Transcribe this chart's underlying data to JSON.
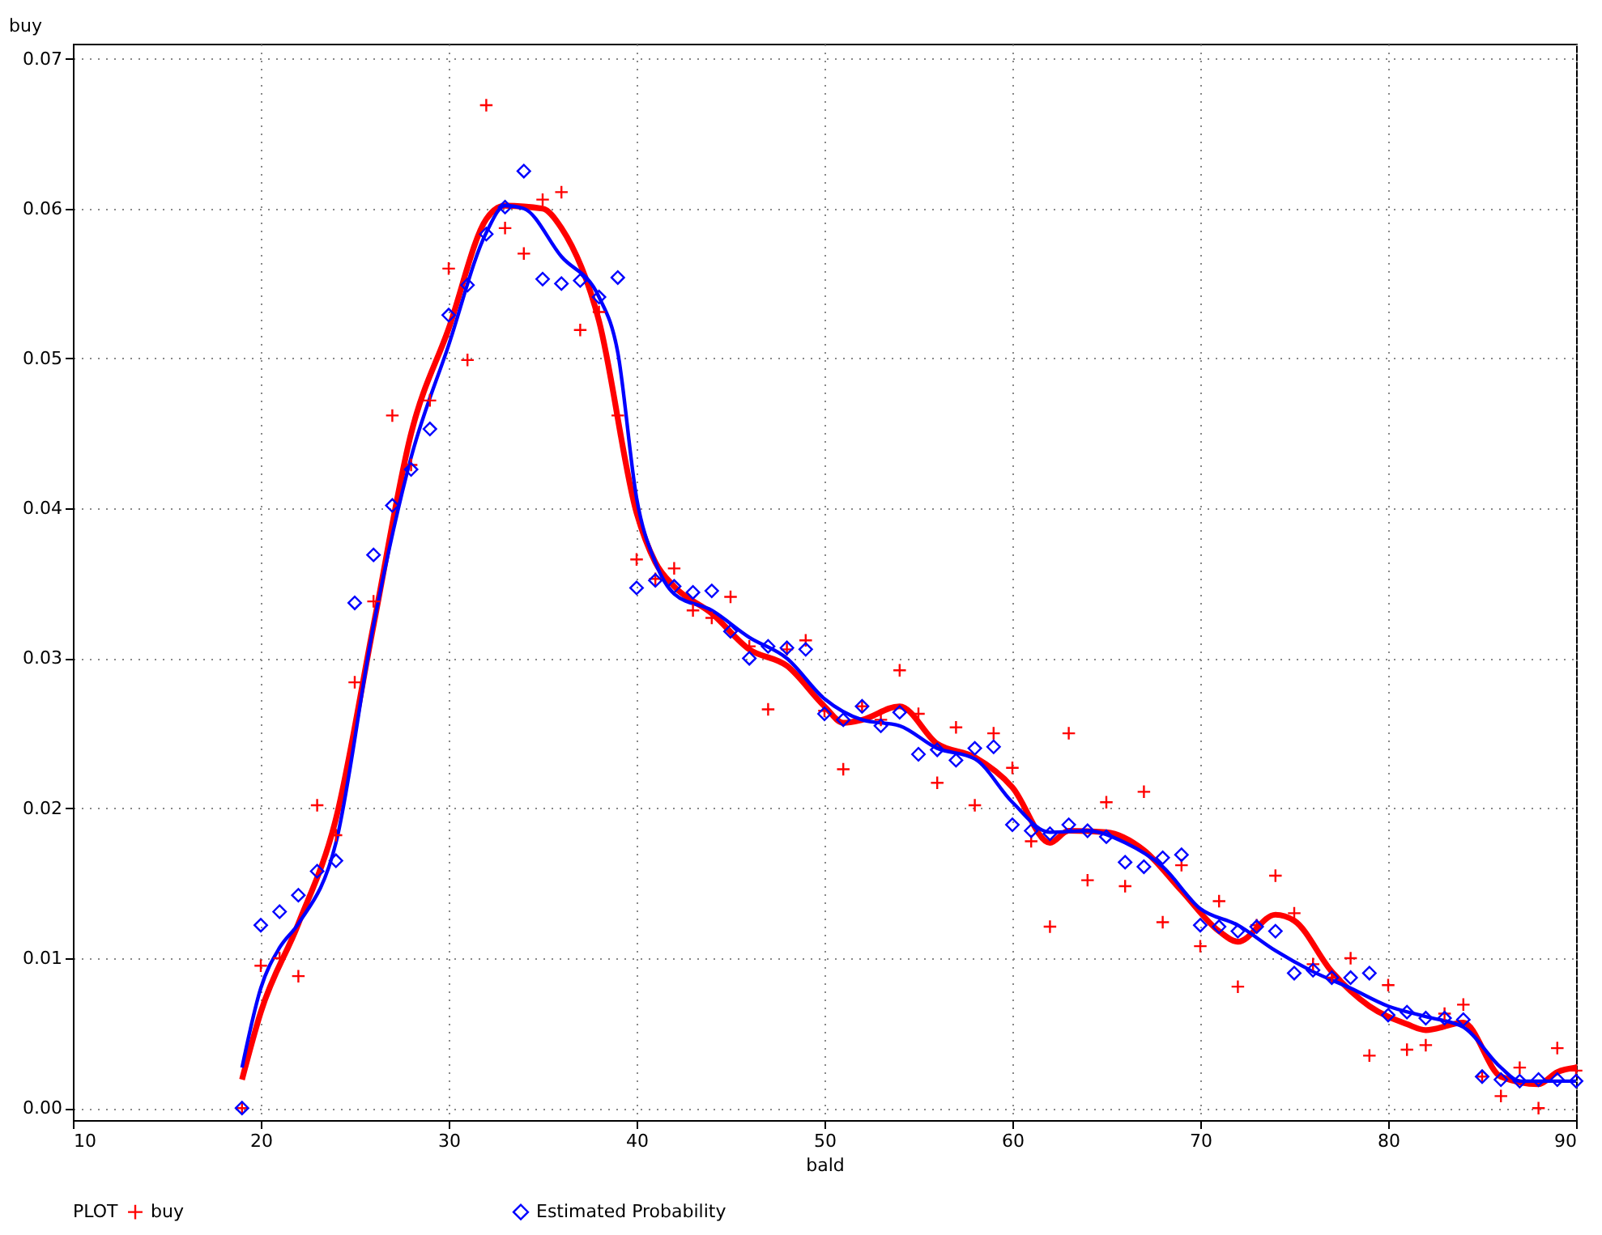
{
  "chart_data": {
    "type": "scatter",
    "xlabel": "bald",
    "ylabel": "buy",
    "legend_title": "PLOT",
    "legend": "bottom",
    "grid": true,
    "line_style": "solid",
    "xlim": [
      10,
      90
    ],
    "xticks": [
      10,
      20,
      30,
      40,
      50,
      60,
      70,
      80,
      90
    ],
    "ylim": [
      -0.0008,
      0.071
    ],
    "yticks": [
      {
        "value": 0,
        "label": "0.00"
      },
      {
        "value": 0.01,
        "label": "0.01"
      },
      {
        "value": 0.02,
        "label": "0.02"
      },
      {
        "value": 0.03,
        "label": "0.03"
      },
      {
        "value": 0.04,
        "label": "0.04"
      },
      {
        "value": 0.05,
        "label": "0.05"
      },
      {
        "value": 0.06,
        "label": "0.06"
      },
      {
        "value": 0.07,
        "label": "0.07"
      }
    ],
    "x": [
      19,
      20,
      21,
      22,
      23,
      24,
      25,
      26,
      27,
      28,
      29,
      30,
      31,
      32,
      33,
      34,
      35,
      36,
      37,
      38,
      39,
      40,
      41,
      42,
      43,
      44,
      45,
      46,
      47,
      48,
      49,
      50,
      51,
      52,
      53,
      54,
      55,
      56,
      57,
      58,
      59,
      60,
      61,
      62,
      63,
      64,
      65,
      66,
      67,
      68,
      69,
      70,
      71,
      72,
      73,
      74,
      75,
      76,
      77,
      78,
      79,
      80,
      81,
      82,
      83,
      84,
      85,
      86,
      87,
      88,
      89,
      90
    ],
    "series": [
      {
        "name": "buy",
        "marker": "cross",
        "color": "#ff0000",
        "values": [
          0,
          0.0095,
          0.01,
          0.0088,
          0.0202,
          0.0182,
          0.0284,
          0.0338,
          0.0462,
          0.0429,
          0.0472,
          0.056,
          0.0499,
          0.0669,
          0.0587,
          0.057,
          0.0606,
          0.0611,
          0.0519,
          0.0531,
          0.0462,
          0.0366,
          0.0353,
          0.036,
          0.0332,
          0.0327,
          0.0341,
          0.0308,
          0.0266,
          0.0306,
          0.0312,
          0.0265,
          0.0226,
          0.0268,
          0.0259,
          0.0292,
          0.0263,
          0.0217,
          0.0254,
          0.0202,
          0.025,
          0.0227,
          0.0178,
          0.0121,
          0.025,
          0.0152,
          0.0204,
          0.0148,
          0.0211,
          0.0124,
          0.0162,
          0.0108,
          0.0138,
          0.0081,
          0.0122,
          0.0155,
          0.013,
          0.0096,
          0.0087,
          0.01,
          0.0035,
          0.0082,
          0.0039,
          0.0042,
          0.0063,
          0.0069,
          0.0021,
          0.0008,
          0.0027,
          0,
          0.004,
          0.0025
        ]
      },
      {
        "name": "Estimated Probability",
        "marker": "diamond",
        "color": "#0000ff",
        "values": [
          0,
          0.0122,
          0.0131,
          0.0142,
          0.0158,
          0.0165,
          0.0337,
          0.0369,
          0.0402,
          0.0426,
          0.0453,
          0.0529,
          0.0549,
          0.0583,
          0.0601,
          0.0625,
          0.0553,
          0.055,
          0.0552,
          0.0541,
          0.0554,
          0.0347,
          0.0352,
          0.0348,
          0.0344,
          0.0345,
          0.0318,
          0.03,
          0.0308,
          0.0307,
          0.0306,
          0.0263,
          0.0259,
          0.0268,
          0.0255,
          0.0264,
          0.0236,
          0.0239,
          0.0232,
          0.024,
          0.0241,
          0.0189,
          0.0185,
          0.0183,
          0.0189,
          0.0185,
          0.0181,
          0.0164,
          0.0161,
          0.0167,
          0.0169,
          0.0122,
          0.0121,
          0.0118,
          0.0121,
          0.0118,
          0.009,
          0.0092,
          0.0087,
          0.0087,
          0.009,
          0.0062,
          0.0064,
          0.006,
          0.006,
          0.0059,
          0.0021,
          0.0019,
          0.0018,
          0.0019,
          0.0019,
          0.0018
        ]
      },
      {
        "type": "line",
        "color": "#ff0000",
        "x": [
          19,
          20,
          22,
          24,
          26,
          28,
          30,
          32,
          33,
          35,
          36,
          38,
          40,
          41,
          42,
          44,
          46,
          48,
          50,
          51,
          52,
          54,
          56,
          58,
          60,
          62,
          63,
          65,
          67,
          69,
          71,
          72,
          74,
          75,
          77,
          79,
          81,
          82,
          84,
          86,
          88,
          89,
          90
        ],
        "values": [
          0.0019,
          0.0064,
          0.0123,
          0.0193,
          0.0322,
          0.045,
          0.052,
          0.0593,
          0.0602,
          0.06,
          0.0587,
          0.0525,
          0.0397,
          0.0364,
          0.0348,
          0.033,
          0.0306,
          0.0295,
          0.0268,
          0.0257,
          0.0259,
          0.0268,
          0.0243,
          0.0234,
          0.0214,
          0.0177,
          0.0185,
          0.0184,
          0.0172,
          0.0145,
          0.0118,
          0.0111,
          0.0129,
          0.0125,
          0.0091,
          0.0068,
          0.0056,
          0.0052,
          0.0057,
          0.0021,
          0.0016,
          0.0024,
          0.0027
        ]
      },
      {
        "type": "line",
        "color": "#0000ff",
        "x": [
          19,
          20,
          21,
          22,
          24,
          26,
          28,
          30,
          32,
          33,
          34,
          36,
          38,
          39,
          40,
          41,
          42,
          44,
          46,
          48,
          50,
          52,
          54,
          56,
          58,
          60,
          62,
          64,
          66,
          68,
          70,
          72,
          74,
          76,
          78,
          80,
          82,
          84,
          86,
          87,
          90
        ],
        "values": [
          0.0027,
          0.008,
          0.0107,
          0.0123,
          0.0177,
          0.0322,
          0.0434,
          0.0509,
          0.0584,
          0.0602,
          0.06,
          0.0568,
          0.0541,
          0.0504,
          0.0407,
          0.0364,
          0.0343,
          0.0332,
          0.0314,
          0.03,
          0.0273,
          0.0259,
          0.0255,
          0.024,
          0.0233,
          0.0204,
          0.0184,
          0.0185,
          0.0177,
          0.0161,
          0.0133,
          0.0122,
          0.0105,
          0.0091,
          0.008,
          0.0068,
          0.0061,
          0.0054,
          0.0027,
          0.0018,
          0.0018
        ]
      }
    ]
  }
}
